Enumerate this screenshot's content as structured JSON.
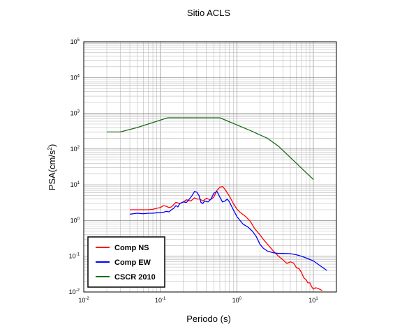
{
  "chart_data": {
    "type": "line",
    "title": "Sitio ACLS",
    "xlabel": "Periodo (s)",
    "ylabel": "PSA(cm/s",
    "ylabel_sup": "2",
    "ylabel_close": ")",
    "x_scale": "log",
    "y_scale": "log",
    "xlim": [
      0.01,
      20
    ],
    "ylim": [
      0.01,
      100000
    ],
    "grid": true,
    "legend_position": "bottom-left",
    "x_ticks": [
      {
        "base": "10",
        "exp": "-2",
        "value": 0.01
      },
      {
        "base": "10",
        "exp": "-1",
        "value": 0.1
      },
      {
        "base": "10",
        "exp": "0",
        "value": 1
      },
      {
        "base": "10",
        "exp": "1",
        "value": 10
      }
    ],
    "y_ticks": [
      {
        "base": "10",
        "exp": "-2",
        "value": 0.01
      },
      {
        "base": "10",
        "exp": "-1",
        "value": 0.1
      },
      {
        "base": "10",
        "exp": "0",
        "value": 1
      },
      {
        "base": "10",
        "exp": "1",
        "value": 10
      },
      {
        "base": "10",
        "exp": "2",
        "value": 100
      },
      {
        "base": "10",
        "exp": "3",
        "value": 1000
      },
      {
        "base": "10",
        "exp": "4",
        "value": 10000
      },
      {
        "base": "10",
        "exp": "5",
        "value": 100000
      }
    ],
    "series": [
      {
        "name": "Comp NS",
        "color": "#ff0000",
        "points": [
          [
            0.04,
            2.0
          ],
          [
            0.05,
            2.0
          ],
          [
            0.06,
            2.0
          ],
          [
            0.07,
            2.0
          ],
          [
            0.08,
            2.05
          ],
          [
            0.09,
            2.2
          ],
          [
            0.1,
            2.3
          ],
          [
            0.11,
            2.6
          ],
          [
            0.12,
            2.5
          ],
          [
            0.13,
            2.3
          ],
          [
            0.14,
            2.4
          ],
          [
            0.16,
            3.2
          ],
          [
            0.18,
            3.0
          ],
          [
            0.2,
            3.3
          ],
          [
            0.22,
            3.8
          ],
          [
            0.25,
            3.5
          ],
          [
            0.28,
            4.3
          ],
          [
            0.3,
            4.0
          ],
          [
            0.33,
            4.0
          ],
          [
            0.36,
            3.5
          ],
          [
            0.4,
            4.2
          ],
          [
            0.45,
            3.8
          ],
          [
            0.5,
            4.5
          ],
          [
            0.55,
            7.0
          ],
          [
            0.6,
            8.5
          ],
          [
            0.65,
            9.0
          ],
          [
            0.7,
            7.5
          ],
          [
            0.8,
            4.8
          ],
          [
            0.9,
            3.0
          ],
          [
            1.0,
            2.1
          ],
          [
            1.1,
            1.7
          ],
          [
            1.3,
            1.3
          ],
          [
            1.5,
            0.95
          ],
          [
            1.7,
            0.6
          ],
          [
            2.0,
            0.4
          ],
          [
            2.3,
            0.27
          ],
          [
            2.6,
            0.2
          ],
          [
            3.0,
            0.14
          ],
          [
            3.5,
            0.1
          ],
          [
            4.0,
            0.08
          ],
          [
            4.5,
            0.063
          ],
          [
            5.0,
            0.07
          ],
          [
            5.5,
            0.065
          ],
          [
            6.0,
            0.048
          ],
          [
            6.5,
            0.045
          ],
          [
            7.0,
            0.035
          ],
          [
            7.5,
            0.025
          ],
          [
            8.0,
            0.022
          ],
          [
            8.5,
            0.018
          ],
          [
            9.0,
            0.018
          ],
          [
            9.5,
            0.014
          ],
          [
            10.0,
            0.012
          ],
          [
            10.5,
            0.013
          ],
          [
            11.0,
            0.013
          ],
          [
            12.0,
            0.012
          ],
          [
            13.0,
            0.011
          ]
        ]
      },
      {
        "name": "Comp EW",
        "color": "#0000ff",
        "points": [
          [
            0.04,
            1.5
          ],
          [
            0.05,
            1.6
          ],
          [
            0.06,
            1.55
          ],
          [
            0.07,
            1.6
          ],
          [
            0.08,
            1.6
          ],
          [
            0.09,
            1.65
          ],
          [
            0.1,
            1.65
          ],
          [
            0.11,
            1.7
          ],
          [
            0.12,
            1.8
          ],
          [
            0.13,
            1.75
          ],
          [
            0.14,
            2.0
          ],
          [
            0.15,
            2.2
          ],
          [
            0.16,
            2.6
          ],
          [
            0.17,
            2.4
          ],
          [
            0.18,
            3.0
          ],
          [
            0.2,
            3.3
          ],
          [
            0.22,
            3.2
          ],
          [
            0.24,
            4.0
          ],
          [
            0.26,
            5.0
          ],
          [
            0.28,
            6.5
          ],
          [
            0.3,
            6.2
          ],
          [
            0.32,
            5.0
          ],
          [
            0.34,
            3.2
          ],
          [
            0.36,
            3.0
          ],
          [
            0.38,
            3.5
          ],
          [
            0.42,
            3.3
          ],
          [
            0.46,
            4.0
          ],
          [
            0.5,
            5.8
          ],
          [
            0.55,
            6.5
          ],
          [
            0.6,
            4.5
          ],
          [
            0.65,
            3.3
          ],
          [
            0.7,
            3.5
          ],
          [
            0.75,
            4.0
          ],
          [
            0.8,
            3.3
          ],
          [
            0.9,
            2.0
          ],
          [
            1.0,
            1.3
          ],
          [
            1.2,
            0.8
          ],
          [
            1.4,
            0.65
          ],
          [
            1.6,
            0.5
          ],
          [
            1.8,
            0.35
          ],
          [
            2.0,
            0.22
          ],
          [
            2.2,
            0.17
          ],
          [
            2.5,
            0.14
          ],
          [
            3.0,
            0.125
          ],
          [
            3.5,
            0.12
          ],
          [
            4.0,
            0.12
          ],
          [
            5.0,
            0.118
          ],
          [
            6.0,
            0.11
          ],
          [
            7.0,
            0.1
          ],
          [
            8.0,
            0.09
          ],
          [
            10.0,
            0.074
          ],
          [
            12.0,
            0.056
          ],
          [
            15.0,
            0.04
          ]
        ]
      },
      {
        "name": "CSCR 2010",
        "color": "#1a6b1a",
        "points": [
          [
            0.02,
            300
          ],
          [
            0.03,
            300
          ],
          [
            0.05,
            400
          ],
          [
            0.125,
            750
          ],
          [
            0.3,
            750
          ],
          [
            0.6,
            750
          ],
          [
            1.5,
            330
          ],
          [
            2.5,
            200
          ],
          [
            3.5,
            120
          ],
          [
            10.0,
            14
          ]
        ]
      }
    ]
  }
}
